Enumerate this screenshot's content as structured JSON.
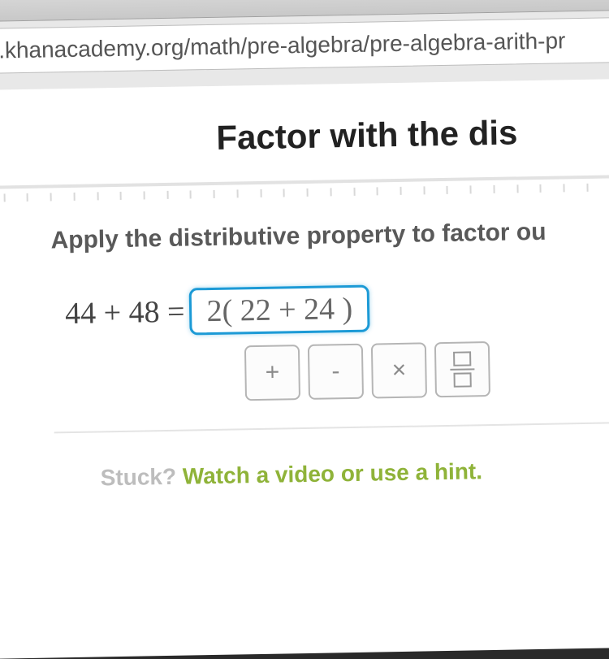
{
  "browser": {
    "url": "w.khanacademy.org/math/pre-algebra/pre-algebra-arith-pr"
  },
  "page": {
    "title": "Factor with the dis",
    "instruction": "Apply the distributive property to factor ou",
    "equation_lhs": "44 + 48 =",
    "answer_value": "2( 22 + 24 )",
    "keypad": {
      "plus": "+",
      "minus": "-",
      "times": "×"
    },
    "stuck_label": "Stuck? ",
    "stuck_link": "Watch a video or use a hint."
  },
  "colors": {
    "input_border": "#1c9ad6",
    "link": "#8fb339"
  }
}
